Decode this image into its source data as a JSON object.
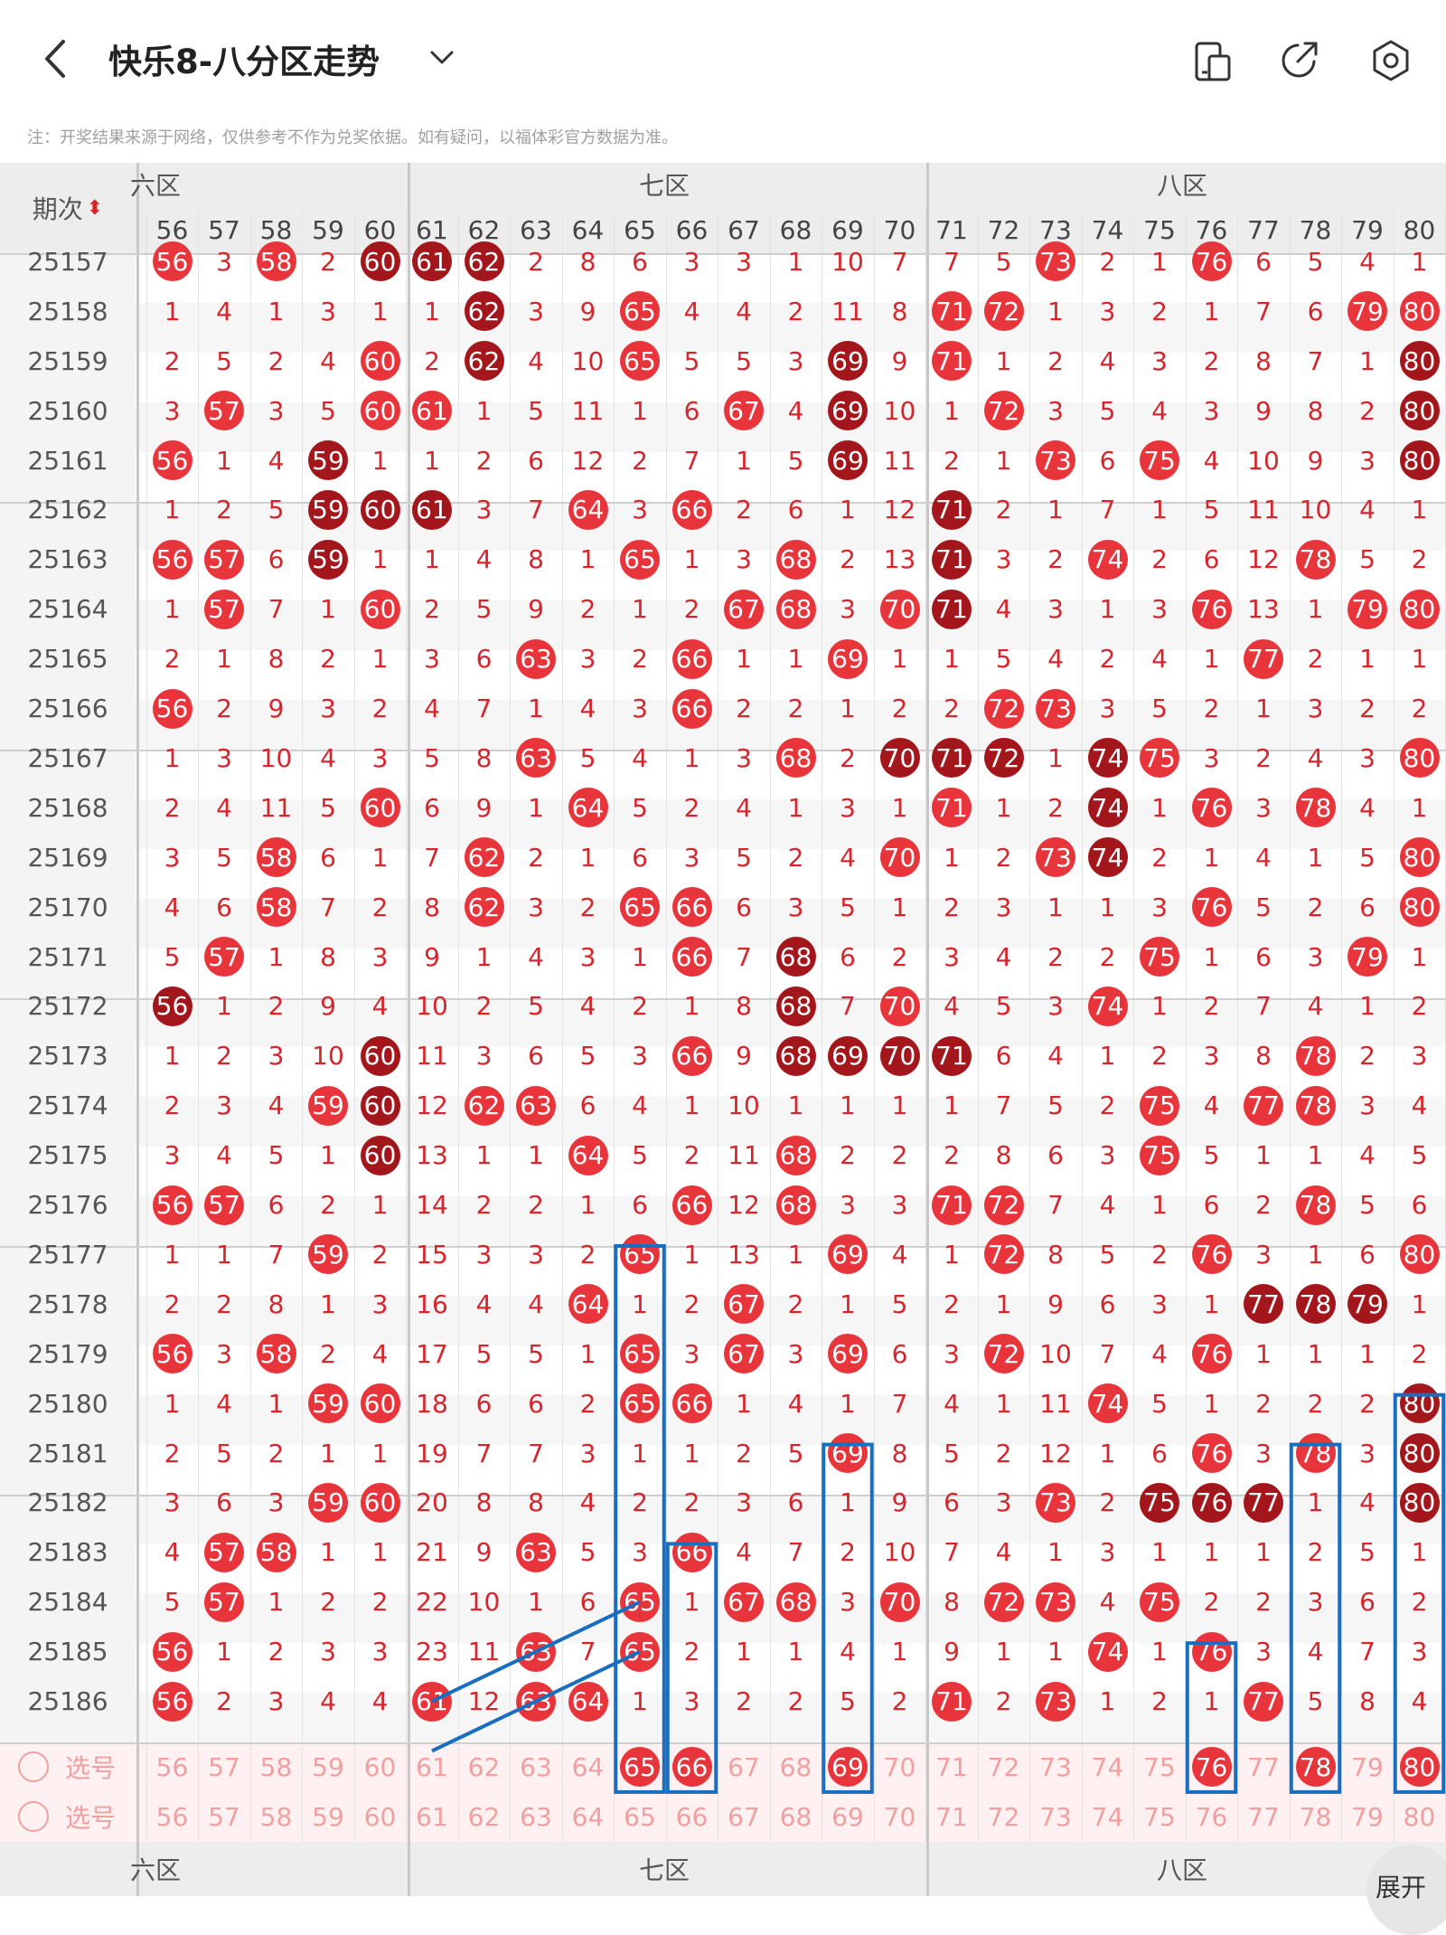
{
  "header": {
    "title": "快乐8-八分区走势",
    "notice": "注：开奖结果来源于网络，仅供参考不作为兑奖依据。如有疑问，以福体彩官方数据为准。"
  },
  "table": {
    "period_header": "期次",
    "zones": [
      {
        "label": "六区"
      },
      {
        "label": "七区"
      },
      {
        "label": "八区"
      }
    ],
    "columns": [
      56,
      57,
      58,
      59,
      60,
      61,
      62,
      63,
      64,
      65,
      66,
      67,
      68,
      69,
      70,
      71,
      72,
      73,
      74,
      75,
      76,
      77,
      78,
      79,
      80
    ],
    "rows": [
      {
        "period": "25157",
        "v": [
          "h",
          "3",
          "h",
          "2",
          "d",
          "d",
          "d",
          "2",
          "8",
          "6",
          "3",
          "3",
          "1",
          "10",
          "7",
          "7",
          "5",
          "h",
          "2",
          "1",
          "h",
          "6",
          "5",
          "4",
          "1"
        ]
      },
      {
        "period": "25158",
        "v": [
          "1",
          "4",
          "1",
          "3",
          "1",
          "1",
          "d",
          "3",
          "9",
          "h",
          "4",
          "4",
          "2",
          "11",
          "8",
          "h",
          "h",
          "1",
          "3",
          "2",
          "1",
          "7",
          "6",
          "h",
          "h"
        ]
      },
      {
        "period": "25159",
        "v": [
          "2",
          "5",
          "2",
          "4",
          "h",
          "2",
          "d",
          "4",
          "10",
          "h",
          "5",
          "5",
          "3",
          "d",
          "9",
          "h",
          "1",
          "2",
          "4",
          "3",
          "2",
          "8",
          "7",
          "1",
          "d"
        ]
      },
      {
        "period": "25160",
        "v": [
          "3",
          "h",
          "3",
          "5",
          "h",
          "h",
          "1",
          "5",
          "11",
          "1",
          "6",
          "h",
          "4",
          "d",
          "10",
          "1",
          "h",
          "3",
          "5",
          "4",
          "3",
          "9",
          "8",
          "2",
          "d"
        ]
      },
      {
        "period": "25161",
        "v": [
          "h",
          "1",
          "4",
          "d",
          "1",
          "1",
          "2",
          "6",
          "12",
          "2",
          "7",
          "1",
          "5",
          "d",
          "11",
          "2",
          "1",
          "h",
          "6",
          "h",
          "4",
          "10",
          "9",
          "3",
          "d"
        ]
      },
      {
        "period": "25162",
        "v": [
          "1",
          "2",
          "5",
          "d",
          "d",
          "d",
          "3",
          "7",
          "h",
          "3",
          "h",
          "2",
          "6",
          "1",
          "12",
          "d",
          "2",
          "1",
          "7",
          "1",
          "5",
          "11",
          "10",
          "4",
          "1"
        ]
      },
      {
        "period": "25163",
        "v": [
          "h",
          "h",
          "6",
          "d",
          "1",
          "1",
          "4",
          "8",
          "1",
          "h",
          "1",
          "3",
          "h",
          "2",
          "13",
          "d",
          "3",
          "2",
          "h",
          "2",
          "6",
          "12",
          "h",
          "5",
          "2"
        ]
      },
      {
        "period": "25164",
        "v": [
          "1",
          "h",
          "7",
          "1",
          "h",
          "2",
          "5",
          "9",
          "2",
          "1",
          "2",
          "h",
          "h",
          "3",
          "h",
          "d",
          "4",
          "3",
          "1",
          "3",
          "h",
          "13",
          "1",
          "h",
          "h"
        ]
      },
      {
        "period": "25165",
        "v": [
          "2",
          "1",
          "8",
          "2",
          "1",
          "3",
          "6",
          "h",
          "3",
          "2",
          "h",
          "1",
          "1",
          "h",
          "1",
          "1",
          "5",
          "4",
          "2",
          "4",
          "1",
          "h",
          "2",
          "1",
          "1"
        ]
      },
      {
        "period": "25166",
        "v": [
          "h",
          "2",
          "9",
          "3",
          "2",
          "4",
          "7",
          "1",
          "4",
          "3",
          "h",
          "2",
          "2",
          "1",
          "2",
          "2",
          "h",
          "h",
          "3",
          "5",
          "2",
          "1",
          "3",
          "2",
          "2"
        ]
      },
      {
        "period": "25167",
        "v": [
          "1",
          "3",
          "10",
          "4",
          "3",
          "5",
          "8",
          "h",
          "5",
          "4",
          "1",
          "3",
          "h",
          "2",
          "d",
          "d",
          "d",
          "1",
          "d",
          "h",
          "3",
          "2",
          "4",
          "3",
          "h"
        ]
      },
      {
        "period": "25168",
        "v": [
          "2",
          "4",
          "11",
          "5",
          "h",
          "6",
          "9",
          "1",
          "h",
          "5",
          "2",
          "4",
          "1",
          "3",
          "1",
          "h",
          "1",
          "2",
          "d",
          "1",
          "h",
          "3",
          "h",
          "4",
          "1"
        ]
      },
      {
        "period": "25169",
        "v": [
          "3",
          "5",
          "h",
          "6",
          "1",
          "7",
          "h",
          "2",
          "1",
          "6",
          "3",
          "5",
          "2",
          "4",
          "h",
          "1",
          "2",
          "h",
          "d",
          "2",
          "1",
          "4",
          "1",
          "5",
          "h"
        ]
      },
      {
        "period": "25170",
        "v": [
          "4",
          "6",
          "h",
          "7",
          "2",
          "8",
          "h",
          "3",
          "2",
          "h",
          "h",
          "6",
          "3",
          "5",
          "1",
          "2",
          "3",
          "1",
          "1",
          "3",
          "h",
          "5",
          "2",
          "6",
          "h"
        ]
      },
      {
        "period": "25171",
        "v": [
          "5",
          "h",
          "1",
          "8",
          "3",
          "9",
          "1",
          "4",
          "3",
          "1",
          "h",
          "7",
          "d",
          "6",
          "2",
          "3",
          "4",
          "2",
          "2",
          "h",
          "1",
          "6",
          "3",
          "h",
          "1"
        ]
      },
      {
        "period": "25172",
        "v": [
          "d",
          "1",
          "2",
          "9",
          "4",
          "10",
          "2",
          "5",
          "4",
          "2",
          "1",
          "8",
          "d",
          "7",
          "h",
          "4",
          "5",
          "3",
          "h",
          "1",
          "2",
          "7",
          "4",
          "1",
          "2"
        ]
      },
      {
        "period": "25173",
        "v": [
          "1",
          "2",
          "3",
          "10",
          "d",
          "11",
          "3",
          "6",
          "5",
          "3",
          "h",
          "9",
          "d",
          "d",
          "d",
          "d",
          "6",
          "4",
          "1",
          "2",
          "3",
          "8",
          "h",
          "2",
          "3"
        ]
      },
      {
        "period": "25174",
        "v": [
          "2",
          "3",
          "4",
          "h",
          "d",
          "12",
          "h",
          "h",
          "6",
          "4",
          "1",
          "10",
          "1",
          "1",
          "1",
          "1",
          "7",
          "5",
          "2",
          "h",
          "4",
          "h",
          "h",
          "3",
          "4"
        ]
      },
      {
        "period": "25175",
        "v": [
          "3",
          "4",
          "5",
          "1",
          "d",
          "13",
          "1",
          "1",
          "h",
          "5",
          "2",
          "11",
          "h",
          "2",
          "2",
          "2",
          "8",
          "6",
          "3",
          "h",
          "5",
          "1",
          "1",
          "4",
          "5"
        ]
      },
      {
        "period": "25176",
        "v": [
          "h",
          "h",
          "6",
          "2",
          "1",
          "14",
          "2",
          "2",
          "1",
          "6",
          "h",
          "12",
          "h",
          "3",
          "3",
          "h",
          "h",
          "7",
          "4",
          "1",
          "6",
          "2",
          "h",
          "5",
          "6"
        ]
      },
      {
        "period": "25177",
        "v": [
          "1",
          "1",
          "7",
          "h",
          "2",
          "15",
          "3",
          "3",
          "2",
          "h",
          "1",
          "13",
          "1",
          "h",
          "4",
          "1",
          "h",
          "8",
          "5",
          "2",
          "h",
          "3",
          "1",
          "6",
          "h"
        ]
      },
      {
        "period": "25178",
        "v": [
          "2",
          "2",
          "8",
          "1",
          "3",
          "16",
          "4",
          "4",
          "h",
          "1",
          "2",
          "h",
          "2",
          "1",
          "5",
          "2",
          "1",
          "9",
          "6",
          "3",
          "1",
          "d",
          "d",
          "d",
          "1"
        ]
      },
      {
        "period": "25179",
        "v": [
          "h",
          "3",
          "h",
          "2",
          "4",
          "17",
          "5",
          "5",
          "1",
          "h",
          "3",
          "h",
          "3",
          "h",
          "6",
          "3",
          "h",
          "10",
          "7",
          "4",
          "h",
          "1",
          "1",
          "1",
          "2"
        ]
      },
      {
        "period": "25180",
        "v": [
          "1",
          "4",
          "1",
          "h",
          "h",
          "18",
          "6",
          "6",
          "2",
          "h",
          "h",
          "1",
          "4",
          "1",
          "7",
          "4",
          "1",
          "11",
          "h",
          "5",
          "1",
          "2",
          "2",
          "2",
          "d"
        ]
      },
      {
        "period": "25181",
        "v": [
          "2",
          "5",
          "2",
          "1",
          "1",
          "19",
          "7",
          "7",
          "3",
          "1",
          "1",
          "2",
          "5",
          "h",
          "8",
          "5",
          "2",
          "12",
          "1",
          "6",
          "h",
          "3",
          "h",
          "3",
          "d"
        ]
      },
      {
        "period": "25182",
        "v": [
          "3",
          "6",
          "3",
          "h",
          "h",
          "20",
          "8",
          "8",
          "4",
          "2",
          "2",
          "3",
          "6",
          "1",
          "9",
          "6",
          "3",
          "h",
          "2",
          "d",
          "d",
          "d",
          "1",
          "4",
          "d"
        ]
      },
      {
        "period": "25183",
        "v": [
          "4",
          "h",
          "h",
          "1",
          "1",
          "21",
          "9",
          "h",
          "5",
          "3",
          "h",
          "4",
          "7",
          "2",
          "10",
          "7",
          "4",
          "1",
          "3",
          "1",
          "1",
          "1",
          "2",
          "5",
          "1"
        ]
      },
      {
        "period": "25184",
        "v": [
          "5",
          "h",
          "1",
          "2",
          "2",
          "22",
          "10",
          "1",
          "6",
          "h",
          "1",
          "h",
          "h",
          "3",
          "h",
          "8",
          "h",
          "h",
          "4",
          "h",
          "2",
          "2",
          "3",
          "6",
          "2"
        ]
      },
      {
        "period": "25185",
        "v": [
          "h",
          "1",
          "2",
          "3",
          "3",
          "23",
          "11",
          "h",
          "7",
          "h",
          "2",
          "1",
          "1",
          "4",
          "1",
          "9",
          "1",
          "1",
          "h",
          "1",
          "h",
          "3",
          "4",
          "7",
          "3"
        ]
      },
      {
        "period": "25186",
        "v": [
          "h",
          "2",
          "3",
          "4",
          "4",
          "h",
          "12",
          "h",
          "h",
          "1",
          "3",
          "2",
          "2",
          "5",
          "2",
          "h",
          "2",
          "h",
          "1",
          "2",
          "1",
          "h",
          "5",
          "8",
          "4"
        ]
      }
    ],
    "select_label": "选号",
    "select_rows": [
      {
        "hits": [
          65,
          66,
          69,
          76,
          78,
          80
        ]
      },
      {
        "hits": []
      }
    ]
  },
  "fab": {
    "label": "展开"
  },
  "colors": {
    "hit": "#e8343b",
    "repeat": "#a3171c",
    "highlight_box": "#1a6ec0",
    "number": "#d6262d",
    "header_bg": "#ededed"
  }
}
